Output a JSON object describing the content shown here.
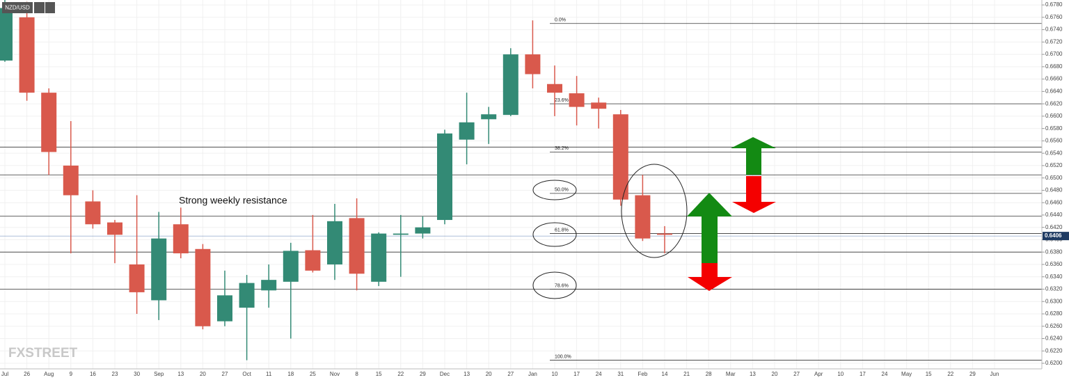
{
  "chart_data": {
    "type": "candlestick",
    "symbol": "NZD/USD",
    "annotation": "Strong weekly resistance",
    "watermark": "FXSTREET",
    "up_color": "#338a75",
    "down_color": "#d9594c",
    "grid": true,
    "categories": [
      "Jul",
      "26",
      "Aug",
      "9",
      "16",
      "23",
      "30",
      "Sep",
      "13",
      "20",
      "27",
      "Oct",
      "11",
      "18",
      "25",
      "Nov",
      "8",
      "15",
      "22",
      "29",
      "Dec",
      "13",
      "20",
      "27",
      "Jan",
      "10",
      "17",
      "24",
      "31",
      "Feb",
      "14",
      "21",
      "28",
      "Mar",
      "13",
      "20",
      "27",
      "Apr",
      "10",
      "17",
      "24",
      "May",
      "15",
      "22",
      "29",
      "Jun"
    ],
    "open": [
      0.669,
      0.676,
      0.6638,
      0.652,
      0.6462,
      0.6428,
      0.636,
      0.6302,
      0.6425,
      0.6385,
      0.6268,
      0.629,
      0.6318,
      0.6332,
      0.6383,
      0.636,
      0.6435,
      0.6332,
      0.6408,
      0.641,
      0.6432,
      0.6562,
      0.6595,
      0.6602,
      0.67,
      0.6652,
      0.6637,
      0.6622,
      0.6603,
      0.6472,
      0.641,
      null,
      null,
      null,
      null,
      null,
      null,
      null,
      null,
      null,
      null,
      null,
      null,
      null,
      null,
      null
    ],
    "high": [
      0.679,
      0.6785,
      0.6645,
      0.6592,
      0.648,
      0.6432,
      0.6472,
      0.6445,
      0.6452,
      0.6393,
      0.635,
      0.6343,
      0.636,
      0.6395,
      0.644,
      0.6458,
      0.6467,
      0.6412,
      0.644,
      0.6438,
      0.6578,
      0.6638,
      0.6615,
      0.671,
      0.6755,
      0.6682,
      0.6665,
      0.663,
      0.661,
      0.6505,
      0.6422,
      null,
      null,
      null,
      null,
      null,
      null,
      null,
      null,
      null,
      null,
      null,
      null,
      null,
      null,
      null
    ],
    "low": [
      0.6688,
      0.6625,
      0.6505,
      0.6378,
      0.6418,
      0.6362,
      0.628,
      0.627,
      0.637,
      0.6255,
      0.626,
      0.6205,
      0.629,
      0.624,
      0.6347,
      0.6335,
      0.6318,
      0.6325,
      0.634,
      0.6402,
      0.6425,
      0.6522,
      0.6555,
      0.66,
      0.6645,
      0.66,
      0.6585,
      0.658,
      0.6455,
      0.6398,
      0.6378,
      null,
      null,
      null,
      null,
      null,
      null,
      null,
      null,
      null,
      null,
      null,
      null,
      null,
      null,
      null
    ],
    "close": [
      0.6775,
      0.6638,
      0.6542,
      0.6472,
      0.6425,
      0.6408,
      0.6315,
      0.6402,
      0.6378,
      0.626,
      0.631,
      0.633,
      0.6335,
      0.6382,
      0.635,
      0.643,
      0.6345,
      0.641,
      0.641,
      0.642,
      0.6572,
      0.659,
      0.6603,
      0.67,
      0.6668,
      0.6638,
      0.6615,
      0.6612,
      0.6465,
      0.6402,
      0.6408,
      null,
      null,
      null,
      null,
      null,
      null,
      null,
      null,
      null,
      null,
      null,
      null,
      null,
      null,
      null
    ],
    "ylim": [
      0.6191,
      0.6788
    ],
    "yticks": [
      {
        "value": 0.62,
        "label": "0.6200"
      },
      {
        "value": 0.622,
        "label": "0.6220"
      },
      {
        "value": 0.624,
        "label": "0.6240"
      },
      {
        "value": 0.626,
        "label": "0.6260"
      },
      {
        "value": 0.628,
        "label": "0.6280"
      },
      {
        "value": 0.63,
        "label": "0.6300"
      },
      {
        "value": 0.632,
        "label": "0.6320"
      },
      {
        "value": 0.634,
        "label": "0.6340"
      },
      {
        "value": 0.636,
        "label": "0.6360"
      },
      {
        "value": 0.638,
        "label": "0.6380"
      },
      {
        "value": 0.64,
        "label": "0.6400"
      },
      {
        "value": 0.642,
        "label": "0.6420"
      },
      {
        "value": 0.644,
        "label": "0.6440"
      },
      {
        "value": 0.646,
        "label": "0.6460"
      },
      {
        "value": 0.648,
        "label": "0.6480"
      },
      {
        "value": 0.65,
        "label": "0.6500"
      },
      {
        "value": 0.652,
        "label": "0.6520"
      },
      {
        "value": 0.654,
        "label": "0.6540"
      },
      {
        "value": 0.656,
        "label": "0.6560"
      },
      {
        "value": 0.658,
        "label": "0.6580"
      },
      {
        "value": 0.66,
        "label": "0.6600"
      },
      {
        "value": 0.662,
        "label": "0.6620"
      },
      {
        "value": 0.664,
        "label": "0.6640"
      },
      {
        "value": 0.666,
        "label": "0.6660"
      },
      {
        "value": 0.668,
        "label": "0.6680"
      },
      {
        "value": 0.67,
        "label": "0.6700"
      },
      {
        "value": 0.672,
        "label": "0.6720"
      },
      {
        "value": 0.674,
        "label": "0.6740"
      },
      {
        "value": 0.676,
        "label": "0.6760"
      },
      {
        "value": 0.678,
        "label": "0.6780"
      }
    ],
    "levels": [
      0.655,
      0.6505,
      0.6438,
      0.638,
      0.632
    ],
    "fib_levels": [
      {
        "label": "0.0%",
        "value": 0.675
      },
      {
        "label": "23.6%",
        "value": 0.662
      },
      {
        "label": "38.2%",
        "value": 0.6542
      },
      {
        "label": "50.0%",
        "value": 0.6475
      },
      {
        "label": "61.8%",
        "value": 0.641
      },
      {
        "label": "78.6%",
        "value": 0.632
      },
      {
        "label": "100.0%",
        "value": 0.6205
      }
    ],
    "last_price": {
      "value": 0.6406,
      "label": "0.6406"
    }
  }
}
